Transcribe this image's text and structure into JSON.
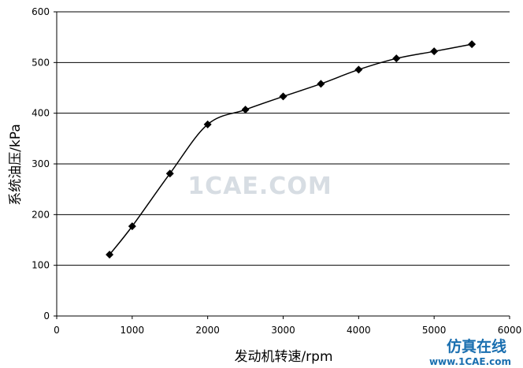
{
  "chart_data": {
    "type": "line",
    "title": "",
    "xlabel": "发动机转速/rpm",
    "ylabel": "系统油压/kPa",
    "xlim": [
      0,
      6000
    ],
    "ylim": [
      0,
      600
    ],
    "x_ticks": [
      0,
      1000,
      2000,
      3000,
      4000,
      5000,
      6000
    ],
    "y_ticks": [
      0,
      100,
      200,
      300,
      400,
      500,
      600
    ],
    "x_tick_labels": [
      "0",
      "1000",
      "2000",
      "3000",
      "4000",
      "5000",
      "6000"
    ],
    "y_tick_labels": [
      "0",
      "100",
      "200",
      "300",
      "400",
      "500",
      "600"
    ],
    "grid": "horizontal",
    "marker": "diamond",
    "series": [
      {
        "color": "#000000",
        "x": [
          700,
          1000,
          1500,
          2000,
          2500,
          3000,
          3500,
          4000,
          4500,
          5000,
          5500
        ],
        "y": [
          121,
          177,
          281,
          378,
          407,
          433,
          458,
          486,
          508,
          522,
          536
        ]
      }
    ]
  },
  "watermark": "1CAE.COM",
  "site_brand": {
    "name": "仿真在线",
    "url": "www.1CAE.com"
  }
}
